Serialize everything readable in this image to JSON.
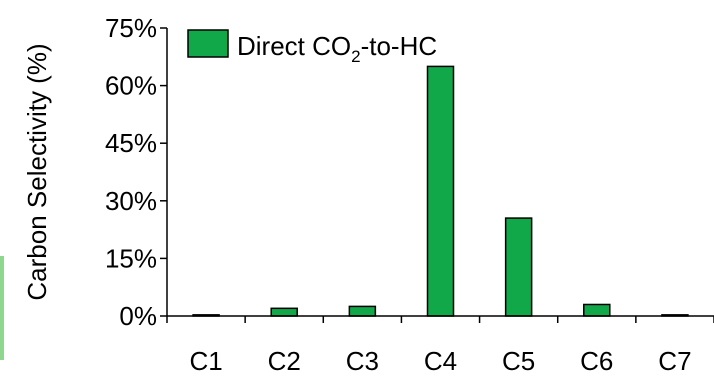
{
  "chart_data": {
    "type": "bar",
    "categories": [
      "C1",
      "C2",
      "C3",
      "C4",
      "C5",
      "C6",
      "C7"
    ],
    "series": [
      {
        "name": "Direct CO2-to-HC",
        "values": [
          0.3,
          2.0,
          2.5,
          65.0,
          25.5,
          3.0,
          0.3
        ]
      }
    ],
    "legend": {
      "text_main": "Direct CO",
      "text_sub": "2",
      "text_tail": "-to-HC",
      "position": "top-left"
    },
    "ylabel": "Carbon Selectivity (%)",
    "xlabel": "",
    "ylim": [
      0,
      75
    ],
    "yticks": [
      0,
      15,
      30,
      45,
      60,
      75
    ],
    "ytick_format": "percent",
    "grid": false,
    "colors": {
      "bar_fill": "#11a84a",
      "bar_stroke": "#000000",
      "accent_strip": "#8fd68f"
    }
  }
}
